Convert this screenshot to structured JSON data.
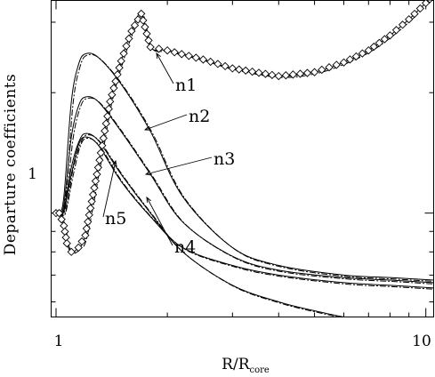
{
  "chart_data": {
    "type": "line",
    "title": "",
    "xlabel": "R/R",
    "xlabel_subscript": "core",
    "ylabel": "Departure coefficients",
    "xscale": "log",
    "yscale": "log",
    "xlim": [
      0.97,
      10.5
    ],
    "ylim": [
      0.55,
      3.4
    ],
    "xticks": [
      {
        "value": 1,
        "label": "1"
      },
      {
        "value": 10,
        "label": "10"
      }
    ],
    "yticks": [
      {
        "value": 1,
        "label": "1"
      }
    ],
    "grid": false,
    "legend": "none",
    "annotations": [
      {
        "text": "n1",
        "target": "n1"
      },
      {
        "text": "n2",
        "target": "n2"
      },
      {
        "text": "n3",
        "target": "n3"
      },
      {
        "text": "n4",
        "target": "n4"
      },
      {
        "text": "n5",
        "target": "n5"
      }
    ],
    "series": [
      {
        "name": "n1",
        "marker": "diamond",
        "x": [
          1.0,
          1.02,
          1.05,
          1.07,
          1.1,
          1.15,
          1.2,
          1.3,
          1.4,
          1.5,
          1.6,
          1.7,
          1.8,
          2.0,
          2.5,
          3.0,
          4.0,
          5.0,
          6.0,
          7.0,
          8.0,
          9.0,
          10.0,
          10.5
        ],
        "y": [
          1.0,
          1.0,
          0.93,
          0.84,
          0.8,
          0.82,
          0.88,
          1.3,
          1.9,
          2.4,
          2.85,
          3.15,
          2.6,
          2.55,
          2.42,
          2.3,
          2.2,
          2.25,
          2.38,
          2.55,
          2.78,
          3.05,
          3.35,
          3.5
        ]
      },
      {
        "name": "n2",
        "x": [
          1.0,
          1.02,
          1.05,
          1.1,
          1.15,
          1.2,
          1.3,
          1.5,
          1.8,
          2.2,
          3.0,
          4.0,
          6.0,
          8.0,
          10.5
        ],
        "y": [
          1.0,
          1.0,
          1.1,
          1.9,
          2.35,
          2.5,
          2.45,
          2.1,
          1.6,
          1.1,
          0.82,
          0.74,
          0.7,
          0.69,
          0.68
        ]
      },
      {
        "name": "n3",
        "x": [
          1.0,
          1.02,
          1.05,
          1.1,
          1.15,
          1.2,
          1.3,
          1.5,
          1.8,
          2.2,
          3.0,
          4.0,
          6.0,
          8.0,
          10.5
        ],
        "y": [
          1.0,
          1.0,
          1.05,
          1.55,
          1.85,
          1.95,
          1.9,
          1.6,
          1.25,
          0.95,
          0.78,
          0.72,
          0.69,
          0.68,
          0.67
        ]
      },
      {
        "name": "n4",
        "x": [
          1.0,
          1.02,
          1.05,
          1.1,
          1.15,
          1.2,
          1.3,
          1.5,
          1.8,
          2.2,
          3.0,
          4.0,
          5.0,
          6.0,
          7.0
        ],
        "y": [
          1.0,
          1.0,
          1.02,
          1.3,
          1.5,
          1.58,
          1.52,
          1.25,
          1.0,
          0.8,
          0.66,
          0.6,
          0.57,
          0.55,
          0.54
        ]
      },
      {
        "name": "n5",
        "x": [
          1.0,
          1.02,
          1.05,
          1.1,
          1.15,
          1.2,
          1.3,
          1.5,
          1.8,
          2.2,
          3.0,
          4.0,
          6.0,
          8.0,
          10.5
        ],
        "y": [
          1.0,
          1.0,
          1.01,
          1.25,
          1.48,
          1.55,
          1.48,
          1.2,
          0.98,
          0.82,
          0.74,
          0.7,
          0.67,
          0.66,
          0.65
        ]
      }
    ]
  }
}
